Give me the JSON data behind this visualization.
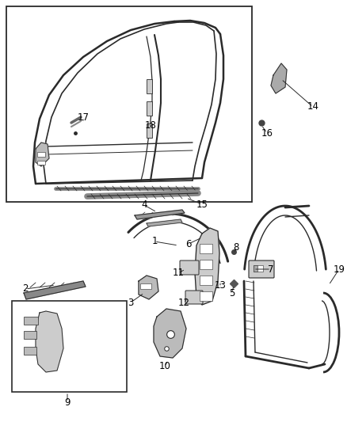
{
  "bg_color": "#ffffff",
  "line_color": "#2a2a2a",
  "label_color": "#000000",
  "fig_width": 4.38,
  "fig_height": 5.33,
  "dpi": 100
}
